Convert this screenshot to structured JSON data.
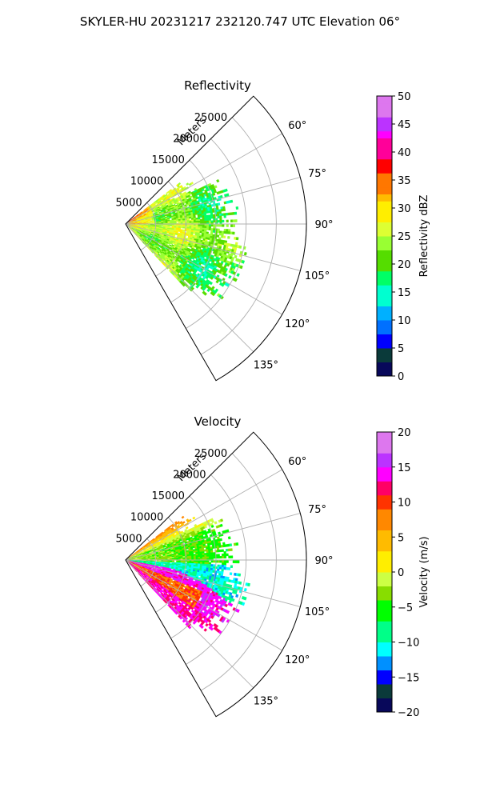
{
  "title": "SKYLER-HU  20231217  232120.747 UTC Elevation 06°",
  "chart_data": [
    {
      "type": "polar-sector",
      "title": "Reflectivity",
      "range_label": "Meters",
      "r_ticks": [
        5000,
        10000,
        15000,
        20000,
        25000
      ],
      "r_tick_labels": [
        "5000",
        "10000",
        "15000",
        "20000",
        "25000"
      ],
      "r_max": 30000,
      "theta_range_deg": [
        45,
        150
      ],
      "theta_ticks_deg": [
        60,
        75,
        90,
        105,
        120,
        135
      ],
      "theta_tick_labels": [
        "60°",
        "75°",
        "90°",
        "105°",
        "120°",
        "135°"
      ],
      "grid": true,
      "colorbar": {
        "label": "Reflectivity dBZ",
        "min": 0,
        "max": 50,
        "ticks": [
          0,
          5,
          10,
          15,
          20,
          25,
          30,
          35,
          40,
          45,
          50
        ],
        "tick_labels": [
          "0",
          "5",
          "10",
          "15",
          "20",
          "25",
          "30",
          "35",
          "40",
          "45",
          "50"
        ],
        "stops": [
          {
            "v": 0,
            "c": "#08085a"
          },
          {
            "v": 3,
            "c": "#0a3a3a"
          },
          {
            "v": 5,
            "c": "#0000ff"
          },
          {
            "v": 7,
            "c": "#0070ff"
          },
          {
            "v": 10,
            "c": "#00b0ff"
          },
          {
            "v": 13,
            "c": "#00ffd0"
          },
          {
            "v": 16,
            "c": "#00ff66"
          },
          {
            "v": 19,
            "c": "#55dd00"
          },
          {
            "v": 22,
            "c": "#99ff33"
          },
          {
            "v": 25,
            "c": "#ddff33"
          },
          {
            "v": 28,
            "c": "#ffee00"
          },
          {
            "v": 31,
            "c": "#ffbb00"
          },
          {
            "v": 33,
            "c": "#ff7700"
          },
          {
            "v": 36,
            "c": "#ff0000"
          },
          {
            "v": 39,
            "c": "#ff0099"
          },
          {
            "v": 42,
            "c": "#ff00ff"
          },
          {
            "v": 44,
            "c": "#bb33ff"
          },
          {
            "v": 46,
            "c": "#dd77ee"
          },
          {
            "v": 50,
            "c": "#ffeeff"
          }
        ]
      }
    },
    {
      "type": "polar-sector",
      "title": "Velocity",
      "range_label": "Meters",
      "r_ticks": [
        5000,
        10000,
        15000,
        20000,
        25000
      ],
      "r_tick_labels": [
        "5000",
        "10000",
        "15000",
        "20000",
        "25000"
      ],
      "r_max": 30000,
      "theta_range_deg": [
        45,
        150
      ],
      "theta_ticks_deg": [
        60,
        75,
        90,
        105,
        120,
        135
      ],
      "theta_tick_labels": [
        "60°",
        "75°",
        "90°",
        "105°",
        "120°",
        "135°"
      ],
      "grid": true,
      "colorbar": {
        "label": "Velocity (m/s)",
        "min": -20,
        "max": 20,
        "ticks": [
          -20,
          -15,
          -10,
          -5,
          0,
          5,
          10,
          15,
          20
        ],
        "tick_labels": [
          "−20",
          "−15",
          "−10",
          "−5",
          "0",
          "5",
          "10",
          "15",
          "20"
        ],
        "stops": [
          {
            "v": -20,
            "c": "#08085a"
          },
          {
            "v": -18,
            "c": "#0a3a3a"
          },
          {
            "v": -16,
            "c": "#0000ff"
          },
          {
            "v": -14,
            "c": "#0090ff"
          },
          {
            "v": -12,
            "c": "#00ffff"
          },
          {
            "v": -10,
            "c": "#00ff88"
          },
          {
            "v": -7,
            "c": "#00ff00"
          },
          {
            "v": -4,
            "c": "#88dd00"
          },
          {
            "v": -2,
            "c": "#ccff44"
          },
          {
            "v": 0,
            "c": "#ffee00"
          },
          {
            "v": 3,
            "c": "#ffbb00"
          },
          {
            "v": 6,
            "c": "#ff8800"
          },
          {
            "v": 9,
            "c": "#ff3300"
          },
          {
            "v": 11,
            "c": "#ff0066"
          },
          {
            "v": 13,
            "c": "#ff00ff"
          },
          {
            "v": 15,
            "c": "#bb33ff"
          },
          {
            "v": 17,
            "c": "#dd77ee"
          },
          {
            "v": 20,
            "c": "#ffeeff"
          }
        ]
      }
    }
  ]
}
